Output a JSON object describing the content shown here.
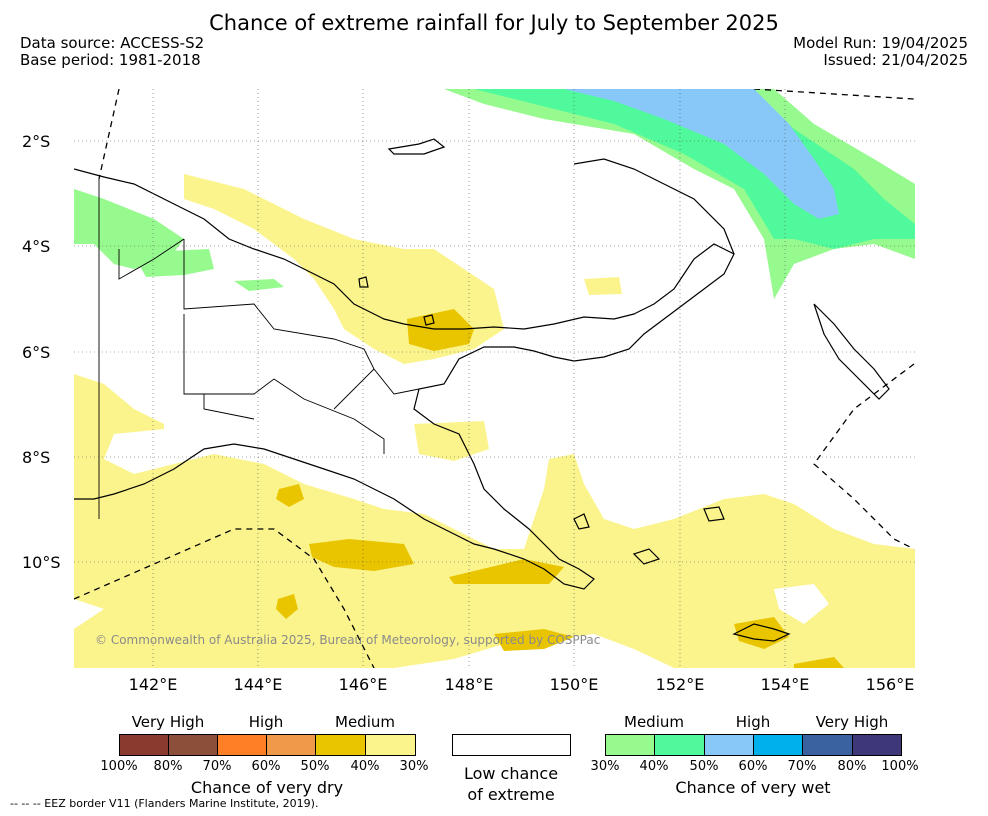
{
  "header": {
    "title": "Chance of extreme rainfall for July to September 2025",
    "data_source": "Data source: ACCESS-S2",
    "base_period": "Base period: 1981-2018",
    "model_run": "Model Run: 19/04/2025",
    "issued": "Issued: 21/04/2025"
  },
  "map": {
    "lat_labels": [
      "2°S",
      "4°S",
      "6°S",
      "8°S",
      "10°S"
    ],
    "lon_labels": [
      "142°E",
      "144°E",
      "146°E",
      "148°E",
      "150°E",
      "152°E",
      "154°E",
      "156°E"
    ],
    "copyright": "© Commonwealth of Australia 2025, Bureau of Meteorology, supported by COSPPac",
    "eez_note": "-- -- -- EEZ border V11 (Flanders Marine Institute, 2019)."
  },
  "legend": {
    "dry": {
      "levels": [
        "Very High",
        "High",
        "Medium"
      ],
      "colors": [
        "#8b3a2f",
        "#8b4f3a",
        "#ff7f27",
        "#ee9a4a",
        "#e9c500",
        "#fbf48c"
      ],
      "ticks": [
        "100%",
        "80%",
        "70%",
        "60%",
        "50%",
        "40%",
        "30%"
      ],
      "caption": "Chance of very dry"
    },
    "low": {
      "caption_line1": "Low chance",
      "caption_line2": "of extreme",
      "color": "#ffffff"
    },
    "wet": {
      "levels": [
        "Medium",
        "High",
        "Very High"
      ],
      "colors": [
        "#96fa8e",
        "#50fa9c",
        "#88c8f8",
        "#00b0ec",
        "#3a62a0",
        "#3e3878"
      ],
      "ticks": [
        "30%",
        "40%",
        "50%",
        "60%",
        "70%",
        "80%",
        "100%"
      ],
      "caption": "Chance of very wet"
    }
  }
}
